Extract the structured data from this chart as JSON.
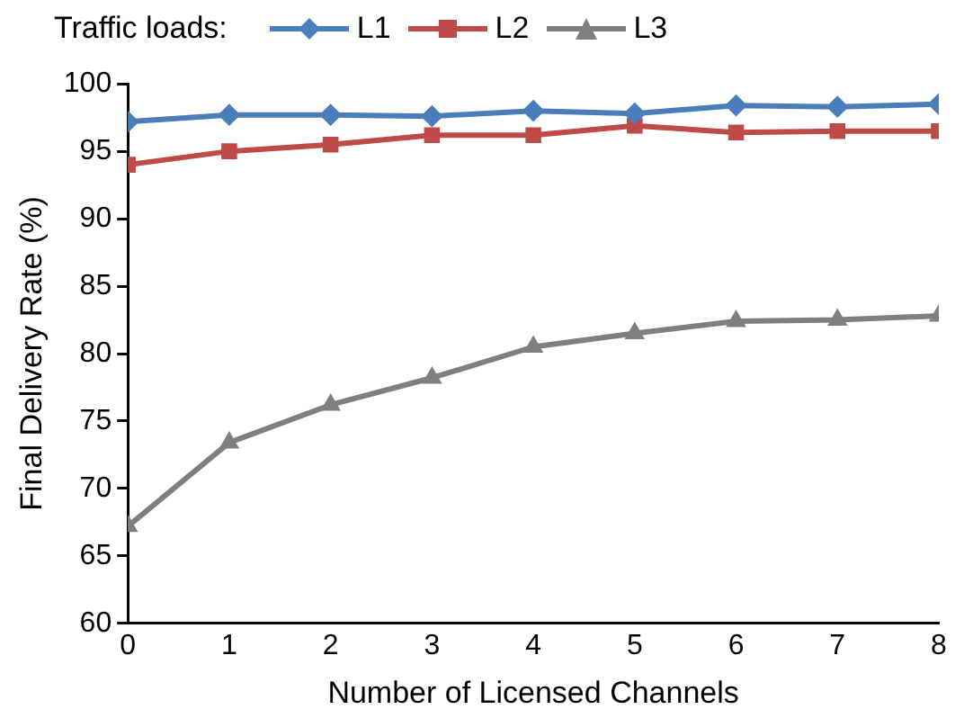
{
  "chart_data": {
    "type": "line",
    "xlabel": "Number of Licensed Channels",
    "ylabel": "Final Delivery Rate (%)",
    "legend_title": "Traffic loads:",
    "x": [
      0,
      1,
      2,
      3,
      4,
      5,
      6,
      7,
      8
    ],
    "series": [
      {
        "name": "L1",
        "color": "#4a7ebb",
        "marker": "diamond",
        "values": [
          97.2,
          97.7,
          97.7,
          97.6,
          98.0,
          97.8,
          98.4,
          98.3,
          98.5
        ]
      },
      {
        "name": "L2",
        "color": "#be4b48",
        "marker": "square",
        "values": [
          94.0,
          95.0,
          95.5,
          96.2,
          96.2,
          96.9,
          96.4,
          96.5,
          96.5
        ]
      },
      {
        "name": "L3",
        "color": "#7f7f7f",
        "marker": "triangle",
        "values": [
          67.2,
          73.4,
          76.2,
          78.2,
          80.5,
          81.5,
          82.4,
          82.5,
          82.8
        ]
      }
    ],
    "xlim": [
      0,
      8
    ],
    "xticks": [
      0,
      1,
      2,
      3,
      4,
      5,
      6,
      7,
      8
    ],
    "ylim": [
      60,
      100
    ],
    "yticks": [
      60,
      65,
      70,
      75,
      80,
      85,
      90,
      95,
      100
    ],
    "grid": false,
    "legend": "top",
    "line_style": "solid"
  }
}
